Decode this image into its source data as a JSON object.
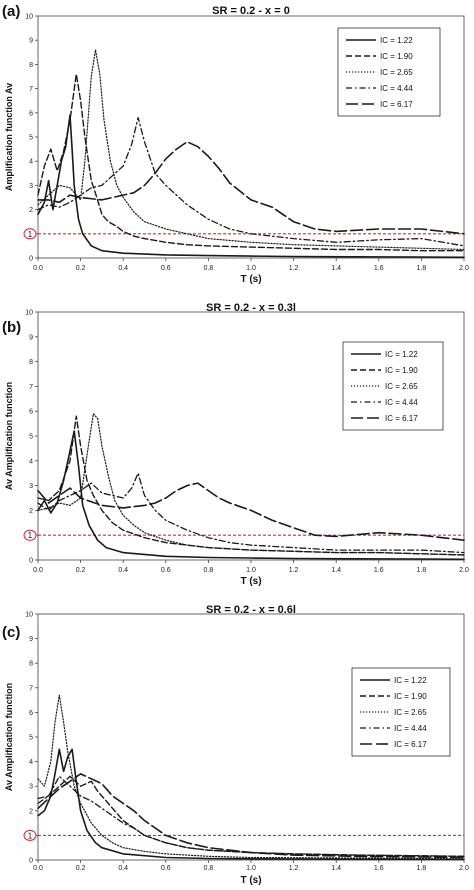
{
  "chart_data": [
    {
      "type": "line",
      "panel_label": "(a)",
      "title": "SR = 0.2 - x = 0",
      "xlabel": "T (s)",
      "ylabel": "Amplification function  Av",
      "xlim": [
        0,
        2
      ],
      "ylim": [
        0,
        10
      ],
      "x_ticks": [
        "0.0",
        "0.2",
        "0.4",
        "0.6",
        "0.8",
        "1.0",
        "1.2",
        "1.4",
        "1.6",
        "1.8",
        "2.0"
      ],
      "y_ticks": [
        "0",
        "1",
        "2",
        "3",
        "4",
        "5",
        "6",
        "7",
        "8",
        "9",
        "10"
      ],
      "grid": false,
      "legend_position": "top-right",
      "reference_line": {
        "y": 1,
        "label": "1",
        "color": "#d9263a"
      },
      "series": [
        {
          "name": "IC = 1.22",
          "style": "solid",
          "x": [
            0,
            0.03,
            0.05,
            0.07,
            0.09,
            0.11,
            0.13,
            0.15,
            0.16,
            0.17,
            0.19,
            0.21,
            0.25,
            0.3,
            0.4,
            0.6,
            0.8,
            1.0,
            1.2,
            1.5,
            1.8,
            2.0
          ],
          "y": [
            1.8,
            2.3,
            3.2,
            2.0,
            3.0,
            4.0,
            4.6,
            5.9,
            4.5,
            3.0,
            1.6,
            1.0,
            0.5,
            0.3,
            0.2,
            0.13,
            0.1,
            0.08,
            0.06,
            0.05,
            0.04,
            0.03
          ]
        },
        {
          "name": "IC = 1.90",
          "style": "dashed",
          "x": [
            0,
            0.03,
            0.06,
            0.09,
            0.12,
            0.15,
            0.18,
            0.2,
            0.22,
            0.25,
            0.28,
            0.3,
            0.33,
            0.37,
            0.4,
            0.45,
            0.5,
            0.6,
            0.7,
            0.8,
            1.0,
            1.2,
            1.4,
            1.6,
            1.8,
            2.0
          ],
          "y": [
            2.6,
            3.8,
            4.5,
            3.6,
            4.4,
            5.7,
            7.6,
            6.5,
            5.0,
            3.2,
            2.4,
            1.8,
            1.5,
            1.3,
            1.1,
            0.9,
            0.8,
            0.65,
            0.55,
            0.5,
            0.45,
            0.4,
            0.35,
            0.35,
            0.3,
            0.3
          ]
        },
        {
          "name": "IC = 2.65",
          "style": "dotted",
          "x": [
            0,
            0.05,
            0.1,
            0.15,
            0.2,
            0.22,
            0.25,
            0.27,
            0.29,
            0.31,
            0.34,
            0.37,
            0.4,
            0.45,
            0.5,
            0.6,
            0.7,
            0.8,
            1.0,
            1.2,
            1.4,
            1.6,
            1.8,
            2.0
          ],
          "y": [
            2.2,
            2.6,
            3.0,
            2.9,
            2.4,
            4.0,
            7.5,
            8.6,
            7.6,
            5.7,
            4.0,
            3.0,
            2.5,
            1.9,
            1.5,
            1.2,
            1.0,
            0.8,
            0.65,
            0.55,
            0.5,
            0.45,
            0.4,
            0.35
          ]
        },
        {
          "name": "IC = 4.44",
          "style": "dashdot",
          "x": [
            0,
            0.05,
            0.1,
            0.15,
            0.2,
            0.25,
            0.3,
            0.35,
            0.4,
            0.44,
            0.47,
            0.5,
            0.55,
            0.6,
            0.65,
            0.7,
            0.8,
            0.9,
            1.0,
            1.2,
            1.4,
            1.6,
            1.8,
            2.0
          ],
          "y": [
            2.0,
            2.2,
            2.1,
            2.3,
            2.6,
            2.9,
            3.0,
            3.4,
            3.8,
            4.7,
            5.8,
            4.8,
            3.5,
            3.0,
            2.6,
            2.2,
            1.6,
            1.2,
            1.0,
            0.8,
            0.65,
            0.75,
            0.8,
            0.5
          ]
        },
        {
          "name": "IC = 6.17",
          "style": "longdash",
          "x": [
            0,
            0.05,
            0.1,
            0.15,
            0.2,
            0.3,
            0.4,
            0.45,
            0.5,
            0.55,
            0.6,
            0.65,
            0.7,
            0.75,
            0.8,
            0.85,
            0.9,
            1.0,
            1.1,
            1.2,
            1.3,
            1.4,
            1.6,
            1.8,
            2.0
          ],
          "y": [
            2.4,
            2.4,
            2.3,
            2.6,
            2.5,
            2.4,
            2.6,
            2.7,
            3.0,
            3.5,
            4.1,
            4.5,
            4.8,
            4.6,
            4.2,
            3.7,
            3.1,
            2.4,
            2.1,
            1.5,
            1.2,
            1.1,
            1.2,
            1.2,
            1.0
          ]
        }
      ]
    },
    {
      "type": "line",
      "panel_label": "(b)",
      "title": "SR = 0.2 - x = 0.3l",
      "xlabel": "T (s)",
      "ylabel": "Av  Amplification function",
      "xlim": [
        0,
        2
      ],
      "ylim": [
        0,
        10
      ],
      "x_ticks": [
        "0.0",
        "0.2",
        "0.4",
        "0.6",
        "0.8",
        "1.0",
        "1.2",
        "1.4",
        "1.6",
        "1.8",
        "2.0"
      ],
      "y_ticks": [
        "0",
        "1",
        "2",
        "3",
        "4",
        "5",
        "6",
        "7",
        "8",
        "9",
        "10"
      ],
      "grid": false,
      "legend_position": "top-right",
      "reference_line": {
        "y": 1,
        "label": "1",
        "color": "#d9263a"
      },
      "series": [
        {
          "name": "IC = 1.22",
          "style": "solid",
          "x": [
            0,
            0.03,
            0.06,
            0.09,
            0.12,
            0.15,
            0.17,
            0.19,
            0.21,
            0.24,
            0.28,
            0.32,
            0.4,
            0.6,
            0.8,
            1.0,
            1.2,
            1.5,
            1.8,
            2.0
          ],
          "y": [
            2.0,
            2.4,
            1.9,
            2.3,
            3.2,
            4.4,
            5.2,
            3.8,
            2.2,
            1.4,
            0.8,
            0.5,
            0.3,
            0.15,
            0.1,
            0.08,
            0.06,
            0.05,
            0.04,
            0.03
          ]
        },
        {
          "name": "IC = 1.90",
          "style": "dashed",
          "x": [
            0,
            0.05,
            0.1,
            0.15,
            0.18,
            0.2,
            0.23,
            0.26,
            0.3,
            0.35,
            0.4,
            0.5,
            0.6,
            0.7,
            0.8,
            1.0,
            1.2,
            1.4,
            1.6,
            1.8,
            2.0
          ],
          "y": [
            2.5,
            2.4,
            2.8,
            4.0,
            5.8,
            4.6,
            3.2,
            2.6,
            2.0,
            1.5,
            1.2,
            0.9,
            0.7,
            0.6,
            0.5,
            0.4,
            0.35,
            0.3,
            0.3,
            0.25,
            0.2
          ]
        },
        {
          "name": "IC = 2.65",
          "style": "dotted",
          "x": [
            0,
            0.05,
            0.1,
            0.15,
            0.2,
            0.24,
            0.26,
            0.28,
            0.3,
            0.33,
            0.36,
            0.4,
            0.45,
            0.5,
            0.6,
            0.7,
            0.8,
            1.0,
            1.2,
            1.4,
            1.6,
            1.8,
            2.0
          ],
          "y": [
            2.0,
            2.1,
            2.3,
            2.2,
            2.5,
            4.8,
            5.9,
            5.7,
            4.6,
            3.4,
            2.4,
            1.8,
            1.4,
            1.1,
            0.8,
            0.6,
            0.5,
            0.4,
            0.35,
            0.3,
            0.3,
            0.25,
            0.2
          ]
        },
        {
          "name": "IC = 4.44",
          "style": "dashdot",
          "x": [
            0,
            0.05,
            0.1,
            0.15,
            0.2,
            0.25,
            0.3,
            0.35,
            0.4,
            0.44,
            0.47,
            0.5,
            0.55,
            0.6,
            0.7,
            0.8,
            0.9,
            1.0,
            1.2,
            1.4,
            1.6,
            1.8,
            2.0
          ],
          "y": [
            2.3,
            2.0,
            2.4,
            2.6,
            2.8,
            3.1,
            2.7,
            2.6,
            2.5,
            2.9,
            3.5,
            2.6,
            2.0,
            1.6,
            1.2,
            0.9,
            0.7,
            0.6,
            0.5,
            0.4,
            0.4,
            0.4,
            0.3
          ]
        },
        {
          "name": "IC = 6.17",
          "style": "longdash",
          "x": [
            0,
            0.05,
            0.1,
            0.15,
            0.2,
            0.3,
            0.4,
            0.5,
            0.55,
            0.6,
            0.65,
            0.7,
            0.75,
            0.8,
            0.85,
            0.9,
            1.0,
            1.1,
            1.2,
            1.3,
            1.4,
            1.6,
            1.8,
            2.0
          ],
          "y": [
            2.8,
            2.3,
            2.6,
            2.9,
            2.5,
            2.2,
            2.1,
            2.2,
            2.3,
            2.5,
            2.8,
            3.0,
            3.1,
            2.8,
            2.5,
            2.3,
            2.0,
            1.6,
            1.3,
            1.0,
            0.95,
            1.1,
            1.0,
            0.8
          ]
        }
      ]
    },
    {
      "type": "line",
      "panel_label": "(c)",
      "title": "SR = 0.2 - x = 0.6l",
      "xlabel": "T (s)",
      "ylabel": "Av  Amplification function",
      "xlim": [
        0,
        2
      ],
      "ylim": [
        0,
        10
      ],
      "x_ticks": [
        "0.0",
        "0.2",
        "0.4",
        "0.6",
        "0.8",
        "1.0",
        "1.2",
        "1.4",
        "1.6",
        "1.8",
        "2.0"
      ],
      "y_ticks": [
        "0",
        "1",
        "2",
        "3",
        "4",
        "5",
        "6",
        "7",
        "8",
        "9",
        "10"
      ],
      "grid": false,
      "legend_position": "top-right",
      "reference_line": {
        "y": 1,
        "label": "1",
        "color": "#d9263a"
      },
      "series": [
        {
          "name": "IC = 1.22",
          "style": "solid",
          "x": [
            0,
            0.03,
            0.06,
            0.08,
            0.1,
            0.12,
            0.14,
            0.16,
            0.18,
            0.2,
            0.23,
            0.27,
            0.3,
            0.4,
            0.6,
            0.8,
            1.0,
            1.5,
            2.0
          ],
          "y": [
            1.8,
            2.0,
            2.6,
            3.5,
            4.5,
            3.6,
            4.2,
            4.5,
            3.2,
            2.0,
            1.2,
            0.7,
            0.5,
            0.25,
            0.1,
            0.06,
            0.05,
            0.03,
            0.02
          ]
        },
        {
          "name": "IC = 1.90",
          "style": "dashed",
          "x": [
            0,
            0.05,
            0.1,
            0.15,
            0.2,
            0.25,
            0.28,
            0.32,
            0.36,
            0.4,
            0.5,
            0.6,
            0.7,
            0.8,
            1.0,
            1.2,
            1.5,
            2.0
          ],
          "y": [
            2.5,
            2.6,
            3.0,
            3.4,
            3.0,
            3.2,
            2.8,
            2.4,
            2.0,
            1.6,
            1.0,
            0.7,
            0.5,
            0.4,
            0.3,
            0.25,
            0.2,
            0.15
          ]
        },
        {
          "name": "IC = 2.65",
          "style": "dotted",
          "x": [
            0,
            0.03,
            0.06,
            0.08,
            0.1,
            0.12,
            0.14,
            0.17,
            0.2,
            0.25,
            0.3,
            0.35,
            0.4,
            0.5,
            0.6,
            0.8,
            1.0,
            1.5,
            2.0
          ],
          "y": [
            3.3,
            3.0,
            4.0,
            5.6,
            6.7,
            5.6,
            4.4,
            3.0,
            2.3,
            1.5,
            1.0,
            0.7,
            0.5,
            0.35,
            0.25,
            0.15,
            0.1,
            0.08,
            0.05
          ]
        },
        {
          "name": "IC = 4.44",
          "style": "dashdot",
          "x": [
            0,
            0.05,
            0.1,
            0.15,
            0.2,
            0.25,
            0.3,
            0.35,
            0.4,
            0.45,
            0.5,
            0.6,
            0.7,
            0.8,
            1.0,
            1.2,
            1.5,
            2.0
          ],
          "y": [
            2.3,
            2.6,
            3.4,
            3.0,
            2.6,
            2.4,
            2.1,
            1.8,
            1.5,
            1.3,
            1.0,
            0.7,
            0.5,
            0.4,
            0.3,
            0.25,
            0.2,
            0.15
          ]
        },
        {
          "name": "IC = 6.17",
          "style": "longdash",
          "x": [
            0,
            0.05,
            0.1,
            0.15,
            0.2,
            0.25,
            0.3,
            0.35,
            0.4,
            0.45,
            0.5,
            0.55,
            0.6,
            0.7,
            0.8,
            1.0,
            1.2,
            1.5,
            2.0
          ],
          "y": [
            2.1,
            2.5,
            2.9,
            3.2,
            3.5,
            3.3,
            3.1,
            2.6,
            2.3,
            2.0,
            1.6,
            1.3,
            1.0,
            0.7,
            0.5,
            0.3,
            0.2,
            0.15,
            0.1
          ]
        }
      ]
    }
  ]
}
